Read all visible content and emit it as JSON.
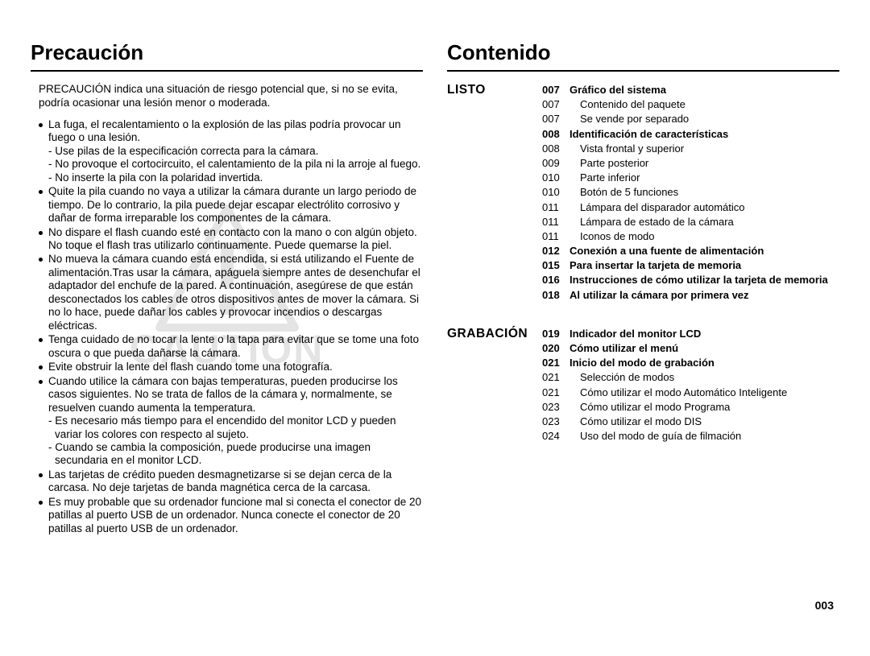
{
  "page_number": "003",
  "left": {
    "heading": "Precaución",
    "intro": "PRECAUCIÓN indica una situación de riesgo potencial que, si no se evita, podría ocasionar una lesión menor o moderada.",
    "watermark_text": "CAUTION",
    "bullets": [
      {
        "text": "La fuga, el recalentamiento o la explosión de las pilas podría provocar un fuego o una lesión.",
        "subs": [
          "- Use pilas de la especificación correcta para la cámara.",
          "- No provoque el cortocircuito, el calentamiento de la pila ni la arroje al fuego.",
          "- No inserte la pila con la polaridad invertida."
        ]
      },
      {
        "text": "Quite la pila cuando no vaya a utilizar la cámara durante un largo periodo de tiempo. De lo contrario, la pila puede dejar escapar electrólito corrosivo y dañar de forma irreparable los componentes de la cámara."
      },
      {
        "text": "No dispare el flash cuando esté en contacto con la mano o con algún objeto. No toque el flash tras utilizarlo continuamente. Puede quemarse la piel."
      },
      {
        "text": "No mueva la cámara cuando está encendida, si está utilizando el Fuente de alimentación.Tras usar la cámara, apáguela siempre antes de desenchufar el adaptador del enchufe de la pared. A continuación, asegúrese de que están desconectados los cables de otros dispositivos antes de mover la cámara. Si no lo hace, puede dañar los cables y provocar incendios o descargas eléctricas."
      },
      {
        "text": "Tenga cuidado de no tocar la lente o la tapa para evitar que se tome una foto oscura o que pueda dañarse la cámara."
      },
      {
        "text": "Evite obstruir la lente del flash cuando tome una fotografía."
      },
      {
        "text": "Cuando utilice la cámara con bajas temperaturas, pueden producirse los casos siguientes. No se trata de fallos de la cámara y, normalmente, se resuelven cuando aumenta la temperatura.",
        "subs": [
          "- Es necesario más tiempo para el encendido del monitor LCD y pueden variar los colores con respecto al sujeto.",
          "- Cuando se cambia la composición, puede producirse una imagen secundaria en el monitor LCD."
        ]
      },
      {
        "text": "Las tarjetas de crédito pueden desmagnetizarse si se dejan cerca de la carcasa. No deje tarjetas de banda magnética cerca de la carcasa."
      },
      {
        "text": "Es muy probable que su ordenador funcione mal si conecta el conector de 20 patillas al puerto USB de un ordenador. Nunca conecte el conector de 20 patillas al puerto USB de un ordenador."
      }
    ]
  },
  "right": {
    "heading": "Contenido",
    "sections": [
      {
        "label": "LISTO",
        "entries": [
          {
            "page": "007",
            "title": "Gráfico del sistema",
            "bold": true
          },
          {
            "page": "007",
            "title": "Contenido del paquete",
            "sub": true
          },
          {
            "page": "007",
            "title": "Se vende por separado",
            "sub": true
          },
          {
            "page": "008",
            "title": "Identificación de características",
            "bold": true
          },
          {
            "page": "008",
            "title": "Vista frontal y superior",
            "sub": true
          },
          {
            "page": "009",
            "title": "Parte posterior",
            "sub": true
          },
          {
            "page": "010",
            "title": "Parte inferior",
            "sub": true
          },
          {
            "page": "010",
            "title": "Botón de 5 funciones",
            "sub": true
          },
          {
            "page": "011",
            "title": "Lámpara del disparador automático",
            "sub": true
          },
          {
            "page": "011",
            "title": "Lámpara de estado de la cámara",
            "sub": true
          },
          {
            "page": "011",
            "title": "Iconos de modo",
            "sub": true
          },
          {
            "page": "012",
            "title": "Conexión a una fuente de alimentación",
            "bold": true
          },
          {
            "page": "015",
            "title": "Para insertar la tarjeta de memoria",
            "bold": true
          },
          {
            "page": "016",
            "title": "Instrucciones de cómo utilizar la tarjeta de memoria",
            "bold": true
          },
          {
            "page": "018",
            "title": "Al utilizar la cámara por primera vez",
            "bold": true
          }
        ]
      },
      {
        "label": "GRABACIÓN",
        "entries": [
          {
            "page": "019",
            "title": "Indicador del monitor LCD",
            "bold": true
          },
          {
            "page": "020",
            "title": "Cómo utilizar el menú",
            "bold": true
          },
          {
            "page": "021",
            "title": "Inicio del modo de grabación",
            "bold": true
          },
          {
            "page": "021",
            "title": "Selección de modos",
            "sub": true
          },
          {
            "page": "021",
            "title": "Cómo utilizar el modo Automático Inteligente",
            "sub": true
          },
          {
            "page": "023",
            "title": "Cómo utilizar el modo Programa",
            "sub": true
          },
          {
            "page": "023",
            "title": "Cómo utilizar el modo DIS",
            "sub": true
          },
          {
            "page": "024",
            "title": "Uso del modo de guía de filmación",
            "sub": true
          }
        ]
      }
    ]
  }
}
